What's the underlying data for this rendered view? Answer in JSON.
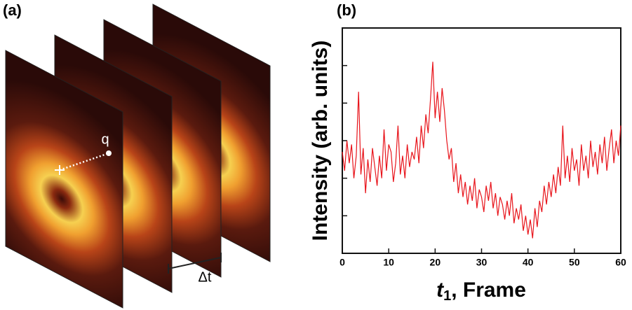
{
  "panel_a": {
    "label": "(a)",
    "q_label": "q",
    "dt_label": "Δt"
  },
  "chart_data": {
    "type": "line",
    "panel_label": "(b)",
    "ylabel": "Intensity (arb. units)",
    "xlabel_var": "t",
    "xlabel_sub": "1",
    "xlabel_rest": ", Frame",
    "color": "#e8141b",
    "xlim": [
      0,
      60
    ],
    "xticks": [
      0,
      10,
      20,
      30,
      40,
      50,
      60
    ],
    "ylim": [
      0,
      6
    ],
    "yticks": [
      1,
      2,
      3,
      4,
      5
    ],
    "x": [
      0,
      0.5,
      1,
      1.5,
      2,
      2.5,
      3,
      3.5,
      4,
      4.5,
      5,
      5.5,
      6,
      6.5,
      7,
      7.5,
      8,
      8.5,
      9,
      9.5,
      10,
      10.5,
      11,
      11.5,
      12,
      12.5,
      13,
      13.5,
      14,
      14.5,
      15,
      15.5,
      16,
      16.5,
      17,
      17.5,
      18,
      18.5,
      19,
      19.5,
      20,
      20.5,
      21,
      21.5,
      22,
      22.5,
      23,
      23.5,
      24,
      24.5,
      25,
      25.5,
      26,
      26.5,
      27,
      27.5,
      28,
      28.5,
      29,
      29.5,
      30,
      30.5,
      31,
      31.5,
      32,
      32.5,
      33,
      33.5,
      34,
      34.5,
      35,
      35.5,
      36,
      36.5,
      37,
      37.5,
      38,
      38.5,
      39,
      39.5,
      40,
      40.5,
      41,
      41.5,
      42,
      42.5,
      43,
      43.5,
      44,
      44.5,
      45,
      45.5,
      46,
      46.5,
      47,
      47.5,
      48,
      48.5,
      49,
      49.5,
      50,
      50.5,
      51,
      51.5,
      52,
      52.5,
      53,
      53.5,
      54,
      54.5,
      55,
      55.5,
      56,
      56.5,
      57,
      57.5,
      58,
      58.5,
      59,
      59.5,
      60
    ],
    "values": [
      2.7,
      2.2,
      3.0,
      2.4,
      2.9,
      2.0,
      2.6,
      4.3,
      2.1,
      2.8,
      1.6,
      2.5,
      1.9,
      2.8,
      2.3,
      1.8,
      2.6,
      2.0,
      3.3,
      2.2,
      2.9,
      2.7,
      1.9,
      2.4,
      3.4,
      2.1,
      2.6,
      2.0,
      2.9,
      2.3,
      2.7,
      2.5,
      3.1,
      2.4,
      3.4,
      2.8,
      3.7,
      3.2,
      4.1,
      5.1,
      3.6,
      4.3,
      3.5,
      4.4,
      3.8,
      3.0,
      2.5,
      2.8,
      1.9,
      2.4,
      1.6,
      2.1,
      1.5,
      1.9,
      1.3,
      1.8,
      1.4,
      2.0,
      1.2,
      1.7,
      1.5,
      1.1,
      1.8,
      1.4,
      1.9,
      1.2,
      1.6,
      1.0,
      1.5,
      1.3,
      0.9,
      1.4,
      1.0,
      1.6,
      0.8,
      1.2,
      0.9,
      1.3,
      0.6,
      1.0,
      0.5,
      0.9,
      0.4,
      1.2,
      0.7,
      1.4,
      1.1,
      1.8,
      1.3,
      1.9,
      1.5,
      2.1,
      1.6,
      2.3,
      1.8,
      3.4,
      2.0,
      2.6,
      1.9,
      2.8,
      2.2,
      2.5,
      1.8,
      2.9,
      2.2,
      2.6,
      2.0,
      3.0,
      2.3,
      2.7,
      2.1,
      2.9,
      2.4,
      3.1,
      2.2,
      2.8,
      3.3,
      2.4,
      3.0,
      2.6,
      3.4
    ]
  }
}
